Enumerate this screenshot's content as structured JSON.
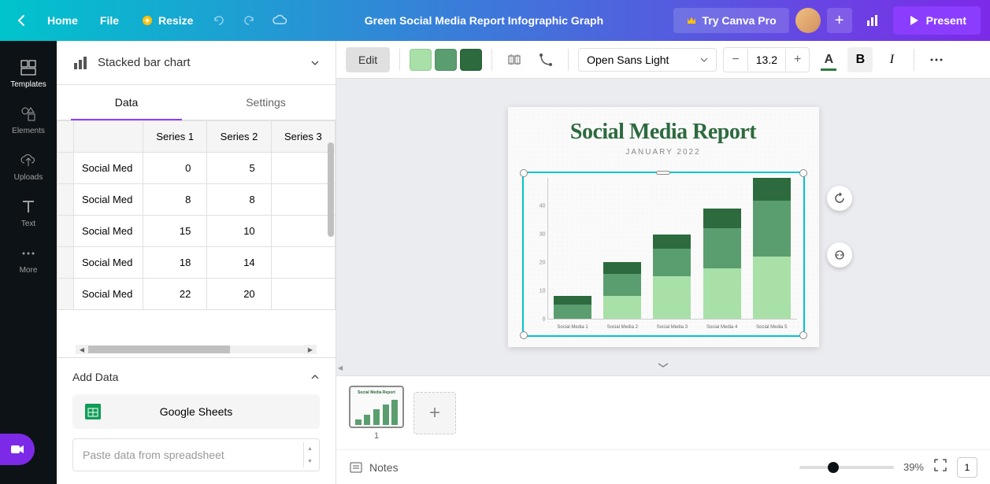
{
  "header": {
    "home": "Home",
    "file": "File",
    "resize": "Resize",
    "doc_title": "Green Social Media Report Infographic Graph",
    "try_pro": "Try Canva Pro",
    "present": "Present"
  },
  "far_sidebar": {
    "items": [
      {
        "label": "Templates",
        "icon": "templates"
      },
      {
        "label": "Elements",
        "icon": "elements"
      },
      {
        "label": "Uploads",
        "icon": "uploads"
      },
      {
        "label": "Text",
        "icon": "text"
      },
      {
        "label": "More",
        "icon": "more"
      }
    ]
  },
  "left_panel": {
    "chart_type": "Stacked bar chart",
    "tabs": [
      "Data",
      "Settings"
    ],
    "active_tab": 0,
    "table": {
      "headers": [
        "",
        "Series 1",
        "Series 2",
        "Series 3"
      ],
      "rows": [
        {
          "label": "Social Med",
          "s1": "0",
          "s2": "5"
        },
        {
          "label": "Social Med",
          "s1": "8",
          "s2": "8"
        },
        {
          "label": "Social Med",
          "s1": "15",
          "s2": "10"
        },
        {
          "label": "Social Med",
          "s1": "18",
          "s2": "14"
        },
        {
          "label": "Social Med",
          "s1": "22",
          "s2": "20"
        }
      ]
    },
    "add_data": "Add Data",
    "google_sheets": "Google Sheets",
    "paste_placeholder": "Paste data from spreadsheet"
  },
  "toolbar": {
    "edit": "Edit",
    "colors": [
      "#a8e0a8",
      "#5a9e6f",
      "#2d6a3e"
    ],
    "font": "Open Sans Light",
    "font_size": "13.2",
    "text_color": "#2d6a3e"
  },
  "canvas": {
    "title": "Social Media Report",
    "subtitle": "JANUARY 2022",
    "chart": {
      "type": "stacked-bar",
      "y_max": 50,
      "y_ticks": [
        0,
        10,
        20,
        30,
        40
      ],
      "categories": [
        "Social Media 1",
        "Social Media 2",
        "Social Media 3",
        "Social Media 4",
        "Social Media 5"
      ],
      "series": [
        {
          "name": "Series 1",
          "color": "#a8e0a8",
          "values": [
            0,
            8,
            15,
            18,
            22
          ]
        },
        {
          "name": "Series 2",
          "color": "#5a9e6f",
          "values": [
            5,
            8,
            10,
            14,
            20
          ]
        },
        {
          "name": "Series 3",
          "color": "#2d6a3e",
          "values": [
            3,
            4,
            5,
            7,
            8
          ]
        }
      ],
      "background": "#fafafa",
      "axis_color": "#cccccc",
      "label_color": "#666666",
      "label_fontsize": 6
    }
  },
  "bottom": {
    "page_num": "1",
    "thumb_title": "Social Media Report",
    "notes": "Notes",
    "zoom_pct": "39%",
    "page_indicator": "1"
  }
}
